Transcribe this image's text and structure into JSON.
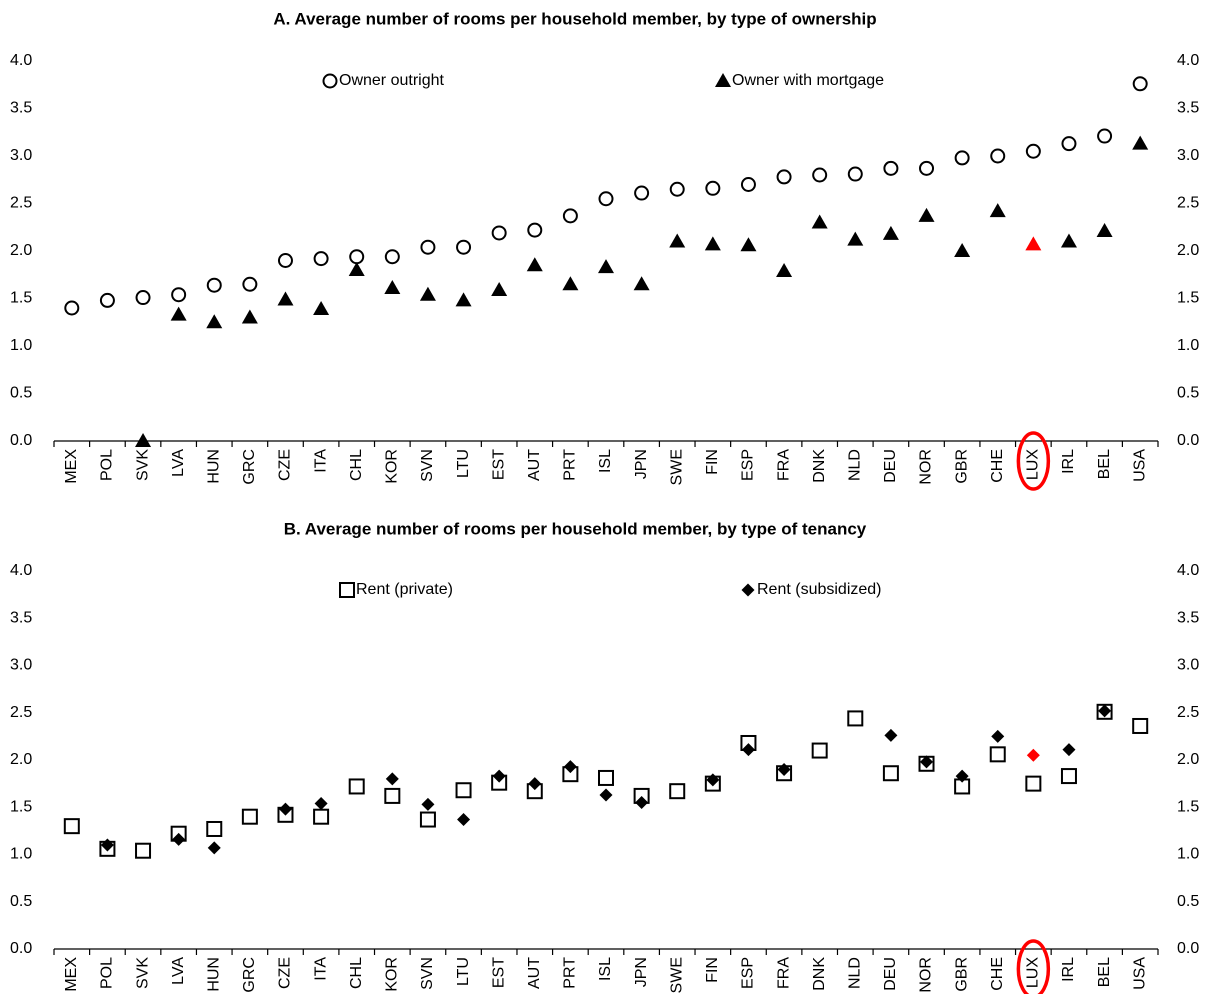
{
  "chart_data": [
    {
      "type": "scatter",
      "title": "A. Average number of rooms per household member, by type of ownership",
      "categories": [
        "MEX",
        "POL",
        "SVK",
        "LVA",
        "HUN",
        "GRC",
        "CZE",
        "ITA",
        "CHL",
        "KOR",
        "SVN",
        "LTU",
        "EST",
        "AUT",
        "PRT",
        "ISL",
        "JPN",
        "SWE",
        "FIN",
        "ESP",
        "FRA",
        "DNK",
        "NLD",
        "DEU",
        "NOR",
        "GBR",
        "CHE",
        "LUX",
        "IRL",
        "BEL",
        "USA"
      ],
      "series": [
        {
          "name": "Owner outright",
          "marker": "circle",
          "color": "#000000",
          "values": [
            1.4,
            1.48,
            1.51,
            1.54,
            1.64,
            1.65,
            1.9,
            1.92,
            1.94,
            1.94,
            2.04,
            2.04,
            2.19,
            2.22,
            2.37,
            2.55,
            2.61,
            2.65,
            2.66,
            2.7,
            2.78,
            2.8,
            2.81,
            2.87,
            2.87,
            2.98,
            3.0,
            3.05,
            3.13,
            3.21,
            3.76
          ]
        },
        {
          "name": "Owner with mortgage",
          "marker": "triangle",
          "color": "#000000",
          "highlight_color": "#ff0000",
          "values": [
            null,
            null,
            0.0,
            1.33,
            1.25,
            1.3,
            1.49,
            1.39,
            1.8,
            1.61,
            1.54,
            1.48,
            1.59,
            1.85,
            1.65,
            1.83,
            1.65,
            2.1,
            2.07,
            2.06,
            1.79,
            2.3,
            2.12,
            2.18,
            2.37,
            2.0,
            2.42,
            2.07,
            2.1,
            2.21,
            3.13
          ]
        }
      ],
      "highlight_category": "LUX",
      "ylim": [
        0,
        4
      ],
      "yticks": [
        {
          "value": 0,
          "label": "0.0"
        },
        {
          "value": 0.5,
          "label": "0.5"
        },
        {
          "value": 1,
          "label": "1.0"
        },
        {
          "value": 1.5,
          "label": "1.5"
        },
        {
          "value": 2,
          "label": "2.0"
        },
        {
          "value": 2.5,
          "label": "2.5"
        },
        {
          "value": 3,
          "label": "3.0"
        },
        {
          "value": 3.5,
          "label": "3.5"
        },
        {
          "value": 4,
          "label": "4.0"
        }
      ],
      "y2lim": [
        0,
        4
      ],
      "y2ticks": [
        {
          "value": 0,
          "label": "0.0"
        },
        {
          "value": 0.5,
          "label": "0.5"
        },
        {
          "value": 1,
          "label": "1.0"
        },
        {
          "value": 1.5,
          "label": "1.5"
        },
        {
          "value": 2,
          "label": "2.0"
        },
        {
          "value": 2.5,
          "label": "2.5"
        },
        {
          "value": 3,
          "label": "3.0"
        },
        {
          "value": 3.5,
          "label": "3.5"
        },
        {
          "value": 4,
          "label": "4.0"
        }
      ],
      "grid": false
    },
    {
      "type": "scatter",
      "title": "B. Average number of rooms per household member, by type of tenancy",
      "categories": [
        "MEX",
        "POL",
        "SVK",
        "LVA",
        "HUN",
        "GRC",
        "CZE",
        "ITA",
        "CHL",
        "KOR",
        "SVN",
        "LTU",
        "EST",
        "AUT",
        "PRT",
        "ISL",
        "JPN",
        "SWE",
        "FIN",
        "ESP",
        "FRA",
        "DNK",
        "NLD",
        "DEU",
        "NOR",
        "GBR",
        "CHE",
        "LUX",
        "IRL",
        "BEL",
        "USA"
      ],
      "series": [
        {
          "name": "Rent (private)",
          "marker": "square",
          "color": "#000000",
          "values": [
            1.3,
            1.06,
            1.04,
            1.22,
            1.27,
            1.4,
            1.42,
            1.4,
            1.72,
            1.62,
            1.37,
            1.68,
            1.76,
            1.67,
            1.85,
            1.81,
            1.62,
            1.67,
            1.75,
            2.18,
            1.86,
            2.1,
            2.44,
            1.86,
            1.96,
            1.72,
            2.06,
            1.75,
            1.83,
            2.51,
            2.36
          ]
        },
        {
          "name": "Rent (subsidized)",
          "marker": "diamond",
          "color": "#000000",
          "highlight_color": "#ff0000",
          "values": [
            null,
            1.1,
            null,
            1.16,
            1.07,
            null,
            1.48,
            1.54,
            null,
            1.8,
            1.53,
            1.37,
            1.83,
            1.75,
            1.93,
            1.63,
            1.55,
            null,
            1.79,
            2.11,
            1.9,
            null,
            null,
            2.26,
            1.98,
            1.83,
            2.25,
            2.05,
            2.11,
            2.52,
            null
          ]
        }
      ],
      "highlight_category": "LUX",
      "ylim": [
        0,
        4
      ],
      "yticks": [
        {
          "value": 0,
          "label": "0.0"
        },
        {
          "value": 0.5,
          "label": "0.5"
        },
        {
          "value": 1,
          "label": "1.0"
        },
        {
          "value": 1.5,
          "label": "1.5"
        },
        {
          "value": 2,
          "label": "2.0"
        },
        {
          "value": 2.5,
          "label": "2.5"
        },
        {
          "value": 3,
          "label": "3.0"
        },
        {
          "value": 3.5,
          "label": "3.5"
        },
        {
          "value": 4,
          "label": "4.0"
        }
      ],
      "y2lim": [
        0,
        4
      ],
      "y2ticks": [
        {
          "value": 0,
          "label": "0.0"
        },
        {
          "value": 0.5,
          "label": "0.5"
        },
        {
          "value": 1,
          "label": "1.0"
        },
        {
          "value": 1.5,
          "label": "1.5"
        },
        {
          "value": 2,
          "label": "2.0"
        },
        {
          "value": 2.5,
          "label": "2.5"
        },
        {
          "value": 3,
          "label": "3.0"
        },
        {
          "value": 3.5,
          "label": "3.5"
        },
        {
          "value": 4,
          "label": "4.0"
        }
      ],
      "grid": false
    }
  ]
}
